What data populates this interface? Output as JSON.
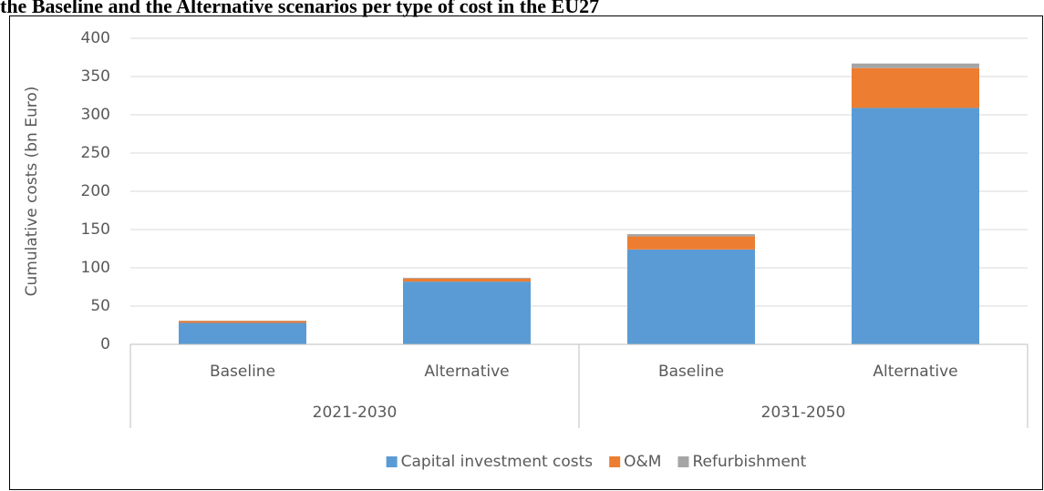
{
  "chart_data": {
    "type": "stacked_bar",
    "title": "the Baseline and the Alternative scenarios per type of cost in the EU27",
    "y_label": "Cumulative costs (bn Euro)",
    "categories": [
      "Baseline",
      "Alternative",
      "Baseline",
      "Alternative"
    ],
    "groups": [
      "2021-2030",
      "2031-2050"
    ],
    "series": [
      {
        "name": "Capital investment costs",
        "color": "#5b9bd5",
        "values": [
          28,
          82,
          124,
          309
        ]
      },
      {
        "name": "O&M",
        "color": "#ed7d31",
        "values": [
          2.5,
          4,
          17,
          52
        ]
      },
      {
        "name": "Refurbishment",
        "color": "#a5a5a5",
        "values": [
          0.5,
          1,
          3,
          6
        ]
      }
    ],
    "ylim": [
      0,
      400
    ],
    "yticks": [
      0,
      50,
      100,
      150,
      200,
      250,
      300,
      350,
      400
    ],
    "grid": true,
    "legend": "bottom"
  }
}
